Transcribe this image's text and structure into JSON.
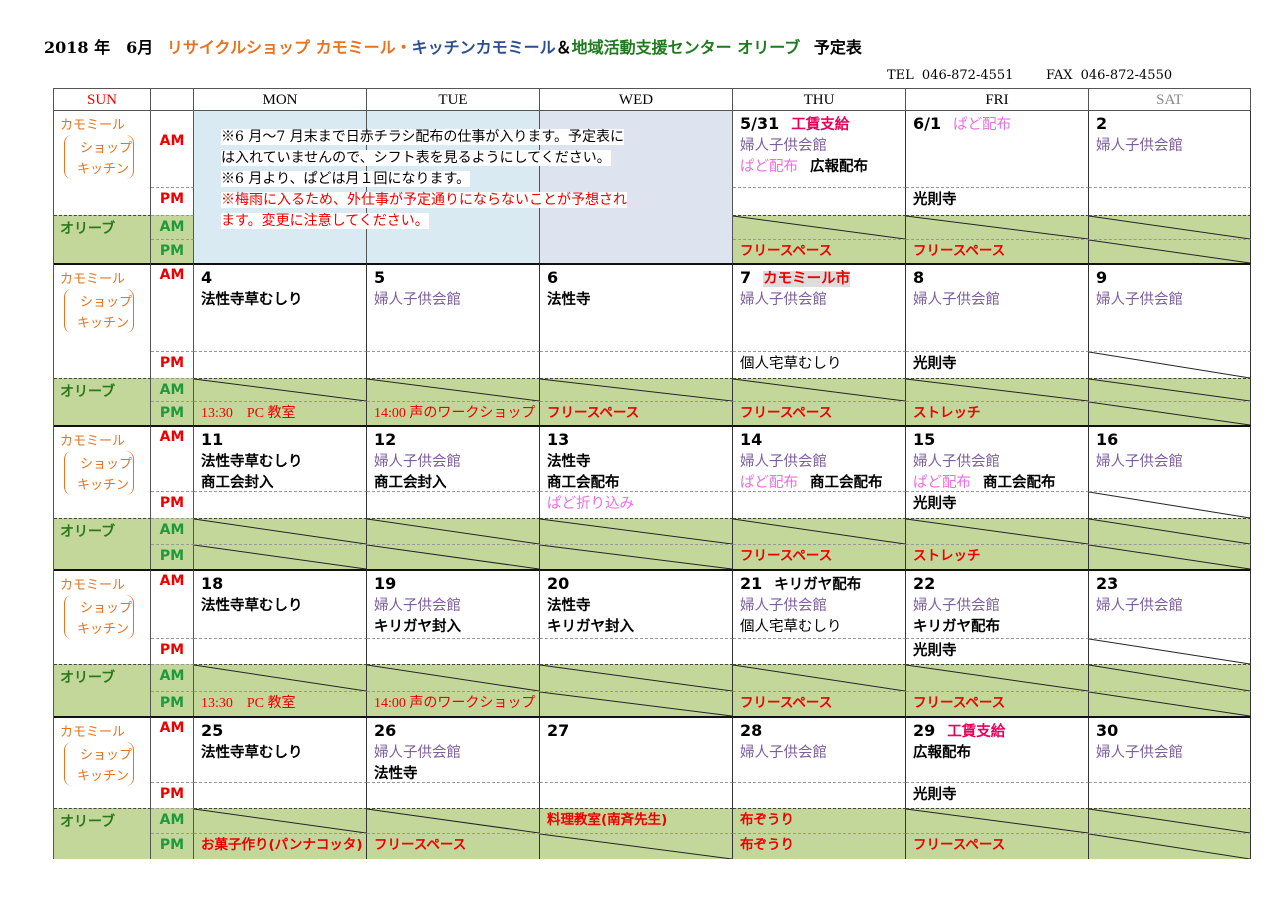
{
  "title": {
    "year_month": "2018 年　6月",
    "shop": "リサイクルショップ カモミール・",
    "kitchen": "キッチンカモミール",
    "amp": "＆",
    "center": "地域活動支援センター オリーブ",
    "suffix": "予定表"
  },
  "contact": {
    "tel": "TEL 046-872-4551",
    "fax": "FAX 046-872-4550"
  },
  "colors": {
    "olive_bg": "#c4d79b",
    "purple": "#7b5e9c",
    "pink": "#ea6ee0",
    "magenta": "#e8005a",
    "red": "#e00000",
    "orange": "#e8731e",
    "green": "#2a7a1a"
  },
  "headers": [
    "SUN",
    "",
    "MON",
    "TUE",
    "WED",
    "THU",
    "FRI",
    "SAT"
  ],
  "labels": {
    "kamomile": "カモミール",
    "shop": "ショップ",
    "kitchen": "キッチン",
    "olive": "オリーブ",
    "am": "AM",
    "pm": "PM"
  },
  "notice": [
    {
      "text": "※6 月～7 月末まで日赤チラシ配布の仕事が入ります。予定表に",
      "color": "black"
    },
    {
      "text": "は入れていませんので、シフト表を見るようにしてください。",
      "color": "black"
    },
    {
      "text": "※6 月より、ぱどは月１回になります。",
      "color": "black"
    },
    {
      "text": "※梅雨に入るため、外仕事が予定通りにならないことが予想され",
      "color": "red"
    },
    {
      "text": "ます。変更に注意してください。",
      "color": "red"
    }
  ],
  "weeks": [
    {
      "days": [
        {
          "notice": true
        },
        {
          "notice": true
        },
        {
          "notice": true
        },
        {
          "date": "5/31",
          "note": [
            {
              "t": "工賃支給",
              "s": "m"
            }
          ],
          "am": [
            [
              {
                "t": "婦人子供会館",
                "s": "p"
              }
            ],
            [
              {
                "t": "ぱど配布",
                "s": "k"
              },
              {
                "t": "広報配布",
                "s": "b"
              }
            ]
          ],
          "pm": [],
          "olive_am": [],
          "olive_pm": [
            {
              "t": "フリースペース",
              "s": "r"
            }
          ]
        },
        {
          "date": "6/1",
          "note": [
            {
              "t": "ぱど配布",
              "s": "k"
            }
          ],
          "am": [],
          "pm": [
            [
              {
                "t": "光則寺",
                "s": "b"
              }
            ]
          ],
          "olive_am": [],
          "olive_pm": [
            {
              "t": "フリースペース",
              "s": "r"
            }
          ]
        },
        {
          "date": "2",
          "am": [
            [
              {
                "t": "婦人子供会館",
                "s": "p"
              }
            ]
          ],
          "pm": [],
          "olive_am": [],
          "olive_pm": []
        }
      ]
    },
    {
      "days": [
        {
          "date": "4",
          "am": [
            [
              {
                "t": "法性寺草むしり",
                "s": "b"
              }
            ]
          ],
          "pm": [],
          "olive_am": [],
          "olive_pm": [
            {
              "t": "13:30　PC 教室",
              "s": "rs"
            }
          ]
        },
        {
          "date": "5",
          "am": [
            [
              {
                "t": "婦人子供会館",
                "s": "p"
              }
            ]
          ],
          "pm": [],
          "olive_am": [],
          "olive_pm": [
            {
              "t": "14:00 声のワークショップ",
              "s": "rs"
            }
          ]
        },
        {
          "date": "6",
          "am": [
            [
              {
                "t": "法性寺",
                "s": "b"
              }
            ]
          ],
          "pm": [],
          "olive_am": [],
          "olive_pm": [
            {
              "t": "フリースペース",
              "s": "r"
            }
          ]
        },
        {
          "date": "7",
          "note": [
            {
              "t": "カモミール市",
              "s": "rh"
            }
          ],
          "am": [
            [
              {
                "t": "婦人子供会館",
                "s": "p"
              }
            ]
          ],
          "pm": [
            [
              {
                "t": "個人宅草むしり",
                "s": "n"
              }
            ]
          ],
          "olive_am": [],
          "olive_pm": [
            {
              "t": "フリースペース",
              "s": "r"
            }
          ]
        },
        {
          "date": "8",
          "am": [
            [
              {
                "t": "婦人子供会館",
                "s": "p"
              }
            ]
          ],
          "pm": [
            [
              {
                "t": "光則寺",
                "s": "b"
              }
            ]
          ],
          "olive_am": [],
          "olive_pm": [
            {
              "t": "ストレッチ",
              "s": "r"
            }
          ]
        },
        {
          "date": "9",
          "am": [
            [
              {
                "t": "婦人子供会館",
                "s": "p"
              }
            ]
          ],
          "pm": [],
          "pm_crossed": true,
          "olive_am": [],
          "olive_pm": []
        }
      ]
    },
    {
      "days": [
        {
          "date": "11",
          "am": [
            [
              {
                "t": "法性寺草むしり",
                "s": "b"
              }
            ],
            [
              {
                "t": "商工会封入",
                "s": "b"
              }
            ]
          ],
          "pm": [],
          "olive_am": [],
          "olive_pm": []
        },
        {
          "date": "12",
          "am": [
            [
              {
                "t": "婦人子供会館",
                "s": "p"
              }
            ],
            [
              {
                "t": "商工会封入",
                "s": "b"
              }
            ]
          ],
          "pm": [],
          "olive_am": [],
          "olive_pm": []
        },
        {
          "date": "13",
          "am": [
            [
              {
                "t": "法性寺",
                "s": "b"
              }
            ],
            [
              {
                "t": "商工会配布",
                "s": "b"
              }
            ]
          ],
          "pm": [
            [
              {
                "t": "ぱど折り込み",
                "s": "k"
              }
            ]
          ],
          "olive_am": [],
          "olive_pm": []
        },
        {
          "date": "14",
          "am": [
            [
              {
                "t": "婦人子供会館",
                "s": "p"
              }
            ],
            [
              {
                "t": "ぱど配布",
                "s": "k"
              },
              {
                "t": "商工会配布",
                "s": "b"
              }
            ]
          ],
          "pm": [],
          "olive_am": [],
          "olive_pm": [
            {
              "t": "フリースペース",
              "s": "r"
            }
          ]
        },
        {
          "date": "15",
          "am": [
            [
              {
                "t": "婦人子供会館",
                "s": "p"
              }
            ],
            [
              {
                "t": "ぱど配布",
                "s": "k"
              },
              {
                "t": "商工会配布",
                "s": "b"
              }
            ]
          ],
          "pm": [
            [
              {
                "t": "光則寺",
                "s": "b"
              }
            ]
          ],
          "olive_am": [],
          "olive_pm": [
            {
              "t": "ストレッチ",
              "s": "r"
            }
          ]
        },
        {
          "date": "16",
          "am": [
            [
              {
                "t": "婦人子供会館",
                "s": "p"
              }
            ]
          ],
          "pm": [],
          "pm_crossed": true,
          "olive_am": [],
          "olive_pm": []
        }
      ]
    },
    {
      "days": [
        {
          "date": "18",
          "am": [
            [
              {
                "t": "法性寺草むしり",
                "s": "b"
              }
            ]
          ],
          "pm": [],
          "olive_am": [],
          "olive_pm": [
            {
              "t": "13:30　PC 教室",
              "s": "rs"
            }
          ]
        },
        {
          "date": "19",
          "am": [
            [
              {
                "t": "婦人子供会館",
                "s": "p"
              }
            ],
            [
              {
                "t": "キリガヤ封入",
                "s": "b"
              }
            ]
          ],
          "pm": [],
          "olive_am": [],
          "olive_pm": [
            {
              "t": "14:00 声のワークショップ",
              "s": "rs"
            }
          ]
        },
        {
          "date": "20",
          "am": [
            [
              {
                "t": "法性寺",
                "s": "b"
              }
            ],
            [
              {
                "t": "キリガヤ封入",
                "s": "b"
              }
            ]
          ],
          "pm": [],
          "olive_am": [],
          "olive_pm": []
        },
        {
          "date": "21",
          "note": [
            {
              "t": "キリガヤ配布",
              "s": "b"
            }
          ],
          "am": [
            [
              {
                "t": "婦人子供会館",
                "s": "p"
              }
            ],
            [
              {
                "t": "個人宅草むしり",
                "s": "n"
              }
            ]
          ],
          "pm": [],
          "olive_am": [],
          "olive_pm": [
            {
              "t": "フリースペース",
              "s": "r"
            }
          ]
        },
        {
          "date": "22",
          "am": [
            [
              {
                "t": "婦人子供会館",
                "s": "p"
              }
            ],
            [
              {
                "t": "キリガヤ配布",
                "s": "b"
              }
            ]
          ],
          "pm": [
            [
              {
                "t": "光則寺",
                "s": "b"
              }
            ]
          ],
          "olive_am": [],
          "olive_pm": [
            {
              "t": "フリースペース",
              "s": "r"
            }
          ]
        },
        {
          "date": "23",
          "am": [
            [
              {
                "t": "婦人子供会館",
                "s": "p"
              }
            ]
          ],
          "pm": [],
          "pm_crossed": true,
          "olive_am": [],
          "olive_pm": []
        }
      ]
    },
    {
      "days": [
        {
          "date": "25",
          "am": [
            [
              {
                "t": "法性寺草むしり",
                "s": "b"
              }
            ]
          ],
          "pm": [],
          "olive_am": [],
          "olive_pm": [
            {
              "t": "お菓子作り(パンナコッタ)",
              "s": "r"
            }
          ]
        },
        {
          "date": "26",
          "am": [
            [
              {
                "t": "婦人子供会館",
                "s": "p"
              }
            ],
            [
              {
                "t": "法性寺",
                "s": "b"
              }
            ]
          ],
          "pm": [],
          "olive_am": [],
          "olive_pm": [
            {
              "t": "フリースペース",
              "s": "r"
            }
          ]
        },
        {
          "date": "27",
          "am": [],
          "pm": [],
          "olive_am": [
            {
              "t": "料理教室(南斉先生)",
              "s": "r"
            }
          ],
          "olive_pm": []
        },
        {
          "date": "28",
          "am": [
            [
              {
                "t": "婦人子供会館",
                "s": "p"
              }
            ]
          ],
          "pm": [],
          "olive_am": [
            {
              "t": "布ぞうり",
              "s": "r"
            }
          ],
          "olive_pm": [
            {
              "t": "布ぞうり",
              "s": "r"
            }
          ]
        },
        {
          "date": "29",
          "note": [
            {
              "t": "工賃支給",
              "s": "m"
            }
          ],
          "am": [
            [
              {
                "t": "広報配布",
                "s": "b"
              }
            ]
          ],
          "pm": [
            [
              {
                "t": "光則寺",
                "s": "b"
              }
            ]
          ],
          "olive_am": [],
          "olive_pm": [
            {
              "t": "フリースペース",
              "s": "r"
            }
          ]
        },
        {
          "date": "30",
          "am": [
            [
              {
                "t": "婦人子供会館",
                "s": "p"
              }
            ]
          ],
          "pm": [],
          "olive_am": [],
          "olive_pm": []
        }
      ]
    }
  ]
}
